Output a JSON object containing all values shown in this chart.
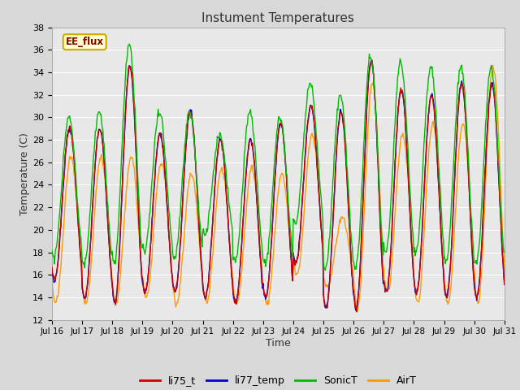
{
  "title": "Instument Temperatures",
  "xlabel": "Time",
  "ylabel": "Temperature (C)",
  "ylim": [
    12,
    38
  ],
  "xlim": [
    0,
    360
  ],
  "fig_bg_color": "#d8d8d8",
  "plot_bg_color": "#e8e8e8",
  "grid_color": "white",
  "colors": {
    "li75_t": "#cc0000",
    "li77_temp": "#0000cc",
    "SonicT": "#00bb00",
    "AirT": "#ff9900"
  },
  "annotation_text": "EE_flux",
  "annotation_bg": "#ffffcc",
  "annotation_border": "#ccaa00",
  "tick_labels": [
    "Jul 16",
    "Jul 17",
    "Jul 18",
    "Jul 19",
    "Jul 20",
    "Jul 21",
    "Jul 22",
    "Jul 23",
    "Jul 24",
    "Jul 25",
    "Jul 26",
    "Jul 27",
    "Jul 28",
    "Jul 29",
    "Jul 30",
    "Jul 31"
  ],
  "tick_positions": [
    0,
    24,
    48,
    72,
    96,
    120,
    144,
    168,
    192,
    216,
    240,
    264,
    288,
    312,
    336,
    360
  ],
  "num_points": 721,
  "legend_entries": [
    "li75_t",
    "li77_temp",
    "SonicT",
    "AirT"
  ]
}
